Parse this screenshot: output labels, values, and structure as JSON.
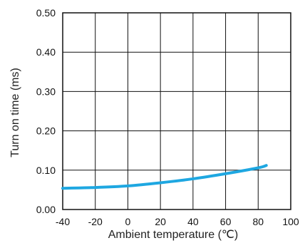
{
  "chart_data": {
    "type": "line",
    "title": "",
    "xlabel": "Ambient temperature (℃)",
    "ylabel": "Turn on time (ms)",
    "xlim": [
      -40,
      100
    ],
    "ylim": [
      0,
      0.5
    ],
    "x_ticks": [
      "-40",
      "-20",
      "0",
      "20",
      "40",
      "60",
      "80",
      "100"
    ],
    "y_ticks": [
      "0.00",
      "0.10",
      "0.20",
      "0.30",
      "0.40",
      "0.50"
    ],
    "grid": true,
    "legend": "none",
    "series": [
      {
        "color": "#1ea7e1",
        "x": [
          -40,
          -20,
          0,
          20,
          40,
          60,
          80,
          85
        ],
        "y": [
          0.054,
          0.056,
          0.06,
          0.068,
          0.078,
          0.091,
          0.106,
          0.112
        ]
      }
    ]
  }
}
